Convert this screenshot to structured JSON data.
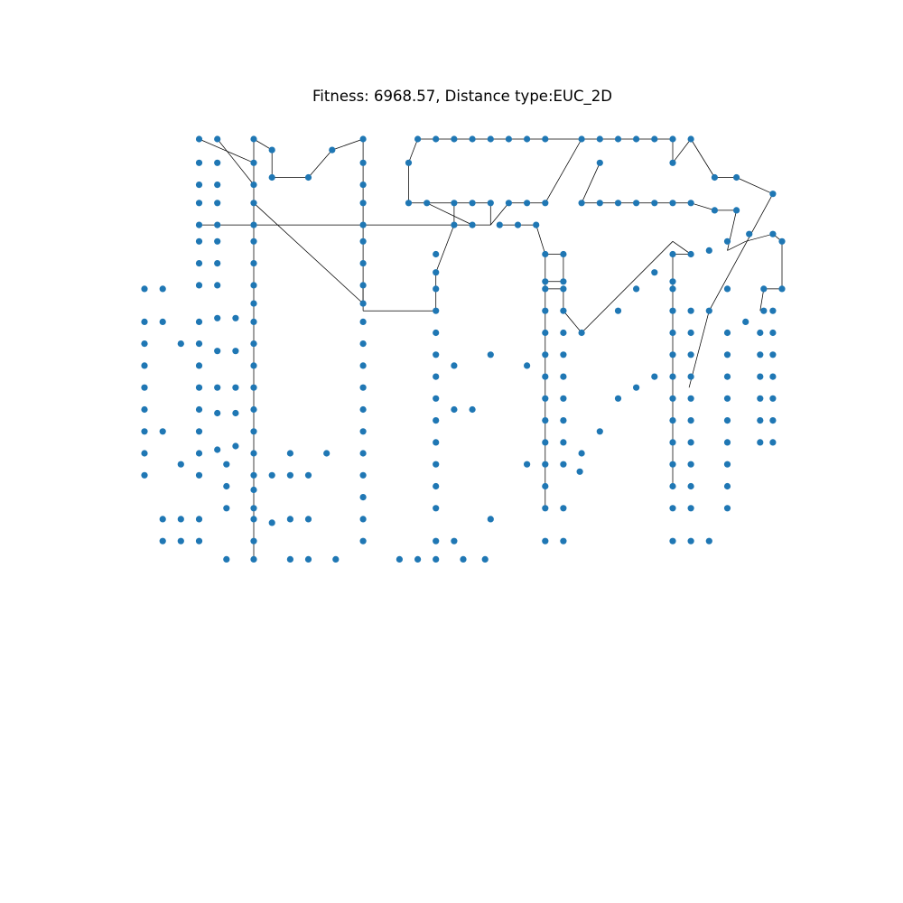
{
  "chart_data": {
    "type": "scatter",
    "title": "Fitness: 6968.57, Distance type:EUC_2D",
    "fitness": 6968.57,
    "distance_type": "EUC_2D",
    "xlabel": "",
    "ylabel": "",
    "axes_visible": false,
    "grid": false,
    "legend": "none",
    "xlim": [
      -0.5,
      35.5
    ],
    "ylim": [
      -0.5,
      34.5
    ],
    "marker_color": "#1f77b4",
    "edge_color": "#000000",
    "points": [
      [
        3,
        34
      ],
      [
        4,
        34
      ],
      [
        6,
        34
      ],
      [
        12,
        34
      ],
      [
        15,
        34
      ],
      [
        16,
        34
      ],
      [
        17,
        34
      ],
      [
        18,
        34
      ],
      [
        19,
        34
      ],
      [
        20,
        34
      ],
      [
        21,
        34
      ],
      [
        22,
        34
      ],
      [
        24,
        34
      ],
      [
        25,
        34
      ],
      [
        26,
        34
      ],
      [
        27,
        34
      ],
      [
        28,
        34
      ],
      [
        29,
        34
      ],
      [
        30,
        34
      ],
      [
        7,
        33.4
      ],
      [
        10.3,
        33.4
      ],
      [
        3,
        32.7
      ],
      [
        4,
        32.7
      ],
      [
        6,
        32.7
      ],
      [
        12,
        32.7
      ],
      [
        14.5,
        32.7
      ],
      [
        25,
        32.7
      ],
      [
        29,
        32.7
      ],
      [
        7,
        31.9
      ],
      [
        9,
        31.9
      ],
      [
        31.3,
        31.9
      ],
      [
        32.5,
        31.9
      ],
      [
        3,
        31.5
      ],
      [
        4,
        31.5
      ],
      [
        6,
        31.5
      ],
      [
        12,
        31.5
      ],
      [
        34.5,
        31
      ],
      [
        3,
        30.5
      ],
      [
        4,
        30.5
      ],
      [
        6,
        30.5
      ],
      [
        12,
        30.5
      ],
      [
        14.5,
        30.5
      ],
      [
        15.5,
        30.5
      ],
      [
        17,
        30.5
      ],
      [
        18,
        30.5
      ],
      [
        19,
        30.5
      ],
      [
        20,
        30.5
      ],
      [
        21,
        30.5
      ],
      [
        22,
        30.5
      ],
      [
        24,
        30.5
      ],
      [
        25,
        30.5
      ],
      [
        26,
        30.5
      ],
      [
        27,
        30.5
      ],
      [
        28,
        30.5
      ],
      [
        29,
        30.5
      ],
      [
        30,
        30.5
      ],
      [
        31.3,
        30.1
      ],
      [
        32.5,
        30.1
      ],
      [
        3,
        29.3
      ],
      [
        4,
        29.3
      ],
      [
        6,
        29.3
      ],
      [
        12,
        29.3
      ],
      [
        17,
        29.3
      ],
      [
        18,
        29.3
      ],
      [
        19.5,
        29.3
      ],
      [
        20.5,
        29.3
      ],
      [
        21.5,
        29.3
      ],
      [
        33.2,
        28.8
      ],
      [
        34.5,
        28.8
      ],
      [
        35,
        28.4
      ],
      [
        3,
        28.4
      ],
      [
        4,
        28.4
      ],
      [
        6,
        28.4
      ],
      [
        12,
        28.4
      ],
      [
        32,
        28.4
      ],
      [
        31,
        27.9
      ],
      [
        16,
        27.7
      ],
      [
        22,
        27.7
      ],
      [
        23,
        27.7
      ],
      [
        29,
        27.7
      ],
      [
        30,
        27.7
      ],
      [
        3,
        27.2
      ],
      [
        4,
        27.2
      ],
      [
        6,
        27.2
      ],
      [
        12,
        27.2
      ],
      [
        16,
        26.7
      ],
      [
        28,
        26.7
      ],
      [
        22,
        26.2
      ],
      [
        23,
        26.2
      ],
      [
        29,
        26.2
      ],
      [
        3,
        26
      ],
      [
        4,
        26
      ],
      [
        6,
        26
      ],
      [
        12,
        26
      ],
      [
        0,
        25.8
      ],
      [
        1,
        25.8
      ],
      [
        16,
        25.8
      ],
      [
        22,
        25.8
      ],
      [
        23,
        25.8
      ],
      [
        27,
        25.8
      ],
      [
        29,
        25.8
      ],
      [
        32,
        25.8
      ],
      [
        34,
        25.8
      ],
      [
        35,
        25.8
      ],
      [
        6,
        25
      ],
      [
        12,
        25
      ],
      [
        16,
        24.6
      ],
      [
        22,
        24.6
      ],
      [
        23,
        24.6
      ],
      [
        26,
        24.6
      ],
      [
        29,
        24.6
      ],
      [
        30,
        24.6
      ],
      [
        31,
        24.6
      ],
      [
        34,
        24.6
      ],
      [
        34.5,
        24.6
      ],
      [
        4,
        24.2
      ],
      [
        5,
        24.2
      ],
      [
        0,
        24
      ],
      [
        1,
        24
      ],
      [
        3,
        24
      ],
      [
        6,
        24
      ],
      [
        12,
        24
      ],
      [
        33,
        24
      ],
      [
        16,
        23.4
      ],
      [
        22,
        23.4
      ],
      [
        23,
        23.4
      ],
      [
        24,
        23.4
      ],
      [
        29,
        23.4
      ],
      [
        30,
        23.4
      ],
      [
        32,
        23.4
      ],
      [
        33.8,
        23.4
      ],
      [
        34.5,
        23.4
      ],
      [
        0,
        22.8
      ],
      [
        2,
        22.8
      ],
      [
        3,
        22.8
      ],
      [
        6,
        22.8
      ],
      [
        12,
        22.8
      ],
      [
        19,
        22.2
      ],
      [
        16,
        22.2
      ],
      [
        22,
        22.2
      ],
      [
        23,
        22.2
      ],
      [
        29,
        22.2
      ],
      [
        30,
        22.2
      ],
      [
        32,
        22.2
      ],
      [
        33.8,
        22.2
      ],
      [
        34.5,
        22.2
      ],
      [
        4,
        22.4
      ],
      [
        5,
        22.4
      ],
      [
        0,
        21.6
      ],
      [
        3,
        21.6
      ],
      [
        6,
        21.6
      ],
      [
        12,
        21.6
      ],
      [
        17,
        21.6
      ],
      [
        21,
        21.6
      ],
      [
        22,
        21
      ],
      [
        23,
        21
      ],
      [
        16,
        21
      ],
      [
        28,
        21
      ],
      [
        29,
        21
      ],
      [
        30,
        21
      ],
      [
        32,
        21
      ],
      [
        33.8,
        21
      ],
      [
        34.5,
        21
      ],
      [
        3,
        20.4
      ],
      [
        4,
        20.4
      ],
      [
        5,
        20.4
      ],
      [
        6,
        20.4
      ],
      [
        0,
        20.4
      ],
      [
        12,
        20.4
      ],
      [
        27,
        20.4
      ],
      [
        16,
        19.8
      ],
      [
        22,
        19.8
      ],
      [
        23,
        19.8
      ],
      [
        26,
        19.8
      ],
      [
        29,
        19.8
      ],
      [
        30,
        19.8
      ],
      [
        32,
        19.8
      ],
      [
        33.8,
        19.8
      ],
      [
        34.5,
        19.8
      ],
      [
        0,
        19.2
      ],
      [
        3,
        19.2
      ],
      [
        4,
        19
      ],
      [
        5,
        19
      ],
      [
        6,
        19.2
      ],
      [
        12,
        19.2
      ],
      [
        17,
        19.2
      ],
      [
        18,
        19.2
      ],
      [
        16,
        18.6
      ],
      [
        22,
        18.6
      ],
      [
        23,
        18.6
      ],
      [
        29,
        18.6
      ],
      [
        30,
        18.6
      ],
      [
        32,
        18.6
      ],
      [
        33.8,
        18.6
      ],
      [
        34.5,
        18.6
      ],
      [
        0,
        18
      ],
      [
        1,
        18
      ],
      [
        3,
        18
      ],
      [
        6,
        18
      ],
      [
        12,
        18
      ],
      [
        25,
        18
      ],
      [
        16,
        17.4
      ],
      [
        22,
        17.4
      ],
      [
        23,
        17.4
      ],
      [
        29,
        17.4
      ],
      [
        30,
        17.4
      ],
      [
        32,
        17.4
      ],
      [
        33.8,
        17.4
      ],
      [
        34.5,
        17.4
      ],
      [
        0,
        16.8
      ],
      [
        3,
        16.8
      ],
      [
        4,
        17
      ],
      [
        5,
        17.2
      ],
      [
        6,
        16.8
      ],
      [
        8,
        16.8
      ],
      [
        10,
        16.8
      ],
      [
        12,
        16.8
      ],
      [
        24,
        16.8
      ],
      [
        2,
        16.2
      ],
      [
        4.5,
        16.2
      ],
      [
        16,
        16.2
      ],
      [
        21,
        16.2
      ],
      [
        22,
        16.2
      ],
      [
        23,
        16.2
      ],
      [
        29,
        16.2
      ],
      [
        30,
        16.2
      ],
      [
        32,
        16.2
      ],
      [
        0,
        15.6
      ],
      [
        3,
        15.6
      ],
      [
        6,
        15.6
      ],
      [
        7,
        15.6
      ],
      [
        8,
        15.6
      ],
      [
        9,
        15.6
      ],
      [
        12,
        15.6
      ],
      [
        23.9,
        15.8
      ],
      [
        4.5,
        15
      ],
      [
        6,
        14.8
      ],
      [
        16,
        15
      ],
      [
        22,
        15
      ],
      [
        29,
        15
      ],
      [
        30,
        15
      ],
      [
        32,
        15
      ],
      [
        12,
        14.4
      ],
      [
        4.5,
        13.8
      ],
      [
        6,
        13.8
      ],
      [
        16,
        13.8
      ],
      [
        22,
        13.8
      ],
      [
        23,
        13.8
      ],
      [
        29,
        13.8
      ],
      [
        30,
        13.8
      ],
      [
        32,
        13.8
      ],
      [
        1,
        13.2
      ],
      [
        2,
        13.2
      ],
      [
        3,
        13.2
      ],
      [
        6,
        13.2
      ],
      [
        7,
        13
      ],
      [
        8,
        13.2
      ],
      [
        9,
        13.2
      ],
      [
        12,
        13.2
      ],
      [
        19,
        13.2
      ],
      [
        1,
        12
      ],
      [
        2,
        12
      ],
      [
        3,
        12
      ],
      [
        6,
        12
      ],
      [
        12,
        12
      ],
      [
        16,
        12
      ],
      [
        17,
        12
      ],
      [
        22,
        12
      ],
      [
        23,
        12
      ],
      [
        29,
        12
      ],
      [
        30,
        12
      ],
      [
        31,
        12
      ],
      [
        4.5,
        11
      ],
      [
        6,
        11
      ],
      [
        8,
        11
      ],
      [
        9,
        11
      ],
      [
        10.5,
        11
      ],
      [
        14,
        11
      ],
      [
        15,
        11
      ],
      [
        16,
        11
      ],
      [
        17.5,
        11
      ],
      [
        18.7,
        11
      ]
    ],
    "tour_edges": [
      [
        [
          3,
          34
        ],
        [
          6,
          32.7
        ]
      ],
      [
        [
          4,
          34
        ],
        [
          6,
          31.5
        ]
      ],
      [
        [
          6,
          34
        ],
        [
          7,
          33.4
        ]
      ],
      [
        [
          7,
          33.4
        ],
        [
          7,
          31.9
        ]
      ],
      [
        [
          7,
          31.9
        ],
        [
          9,
          31.9
        ]
      ],
      [
        [
          9,
          31.9
        ],
        [
          10.3,
          33.4
        ]
      ],
      [
        [
          10.3,
          33.4
        ],
        [
          12,
          34
        ]
      ],
      [
        [
          12,
          34
        ],
        [
          12,
          25
        ]
      ],
      [
        [
          12,
          25
        ],
        [
          6,
          30.5
        ]
      ],
      [
        [
          6,
          34
        ],
        [
          6,
          11
        ]
      ],
      [
        [
          15,
          34
        ],
        [
          14.5,
          32.7
        ]
      ],
      [
        [
          14.5,
          32.7
        ],
        [
          14.5,
          30.5
        ]
      ],
      [
        [
          14.5,
          30.5
        ],
        [
          17,
          30.5
        ]
      ],
      [
        [
          15,
          34
        ],
        [
          22,
          34
        ]
      ],
      [
        [
          22,
          34
        ],
        [
          24,
          34
        ]
      ],
      [
        [
          24,
          34
        ],
        [
          22,
          30.5
        ]
      ],
      [
        [
          24,
          34
        ],
        [
          25,
          34
        ]
      ],
      [
        [
          25,
          34
        ],
        [
          29,
          34
        ]
      ],
      [
        [
          29,
          34
        ],
        [
          29,
          32.7
        ]
      ],
      [
        [
          29,
          32.7
        ],
        [
          30,
          34
        ]
      ],
      [
        [
          30,
          34
        ],
        [
          31.3,
          31.9
        ]
      ],
      [
        [
          31.3,
          31.9
        ],
        [
          32.5,
          31.9
        ]
      ],
      [
        [
          32.5,
          31.9
        ],
        [
          34.5,
          31
        ]
      ],
      [
        [
          34.5,
          31
        ],
        [
          31,
          24.6
        ]
      ],
      [
        [
          31,
          24.6
        ],
        [
          29.9,
          20.4
        ]
      ],
      [
        [
          24,
          30.5
        ],
        [
          25,
          32.7
        ]
      ],
      [
        [
          24,
          30.5
        ],
        [
          30,
          30.5
        ]
      ],
      [
        [
          30,
          30.5
        ],
        [
          31.3,
          30.1
        ]
      ],
      [
        [
          31.3,
          30.1
        ],
        [
          32.5,
          30.1
        ]
      ],
      [
        [
          32.5,
          30.1
        ],
        [
          32,
          27.9
        ]
      ],
      [
        [
          32,
          27.9
        ],
        [
          33,
          28.4
        ]
      ],
      [
        [
          33,
          28.4
        ],
        [
          34.5,
          28.8
        ]
      ],
      [
        [
          34.5,
          28.8
        ],
        [
          35,
          28.4
        ]
      ],
      [
        [
          35,
          28.4
        ],
        [
          35,
          25.8
        ]
      ],
      [
        [
          35,
          25.8
        ],
        [
          34,
          25.8
        ]
      ],
      [
        [
          34,
          25.8
        ],
        [
          33.8,
          24.6
        ]
      ],
      [
        [
          17,
          30.5
        ],
        [
          17,
          29.3
        ]
      ],
      [
        [
          17,
          30.5
        ],
        [
          18,
          30.5
        ]
      ],
      [
        [
          18,
          30.5
        ],
        [
          19,
          30.5
        ]
      ],
      [
        [
          19,
          30.5
        ],
        [
          19,
          29.3
        ]
      ],
      [
        [
          19,
          29.3
        ],
        [
          20,
          30.5
        ]
      ],
      [
        [
          20,
          30.5
        ],
        [
          22,
          30.5
        ]
      ],
      [
        [
          15.5,
          30.5
        ],
        [
          18,
          29.3
        ]
      ],
      [
        [
          12,
          29.3
        ],
        [
          19,
          29.3
        ]
      ],
      [
        [
          3,
          29.3
        ],
        [
          12,
          29.3
        ]
      ],
      [
        [
          19.5,
          29.3
        ],
        [
          20.5,
          29.3
        ]
      ],
      [
        [
          20.5,
          29.3
        ],
        [
          21.5,
          29.3
        ]
      ],
      [
        [
          21.5,
          29.3
        ],
        [
          22,
          27.7
        ]
      ],
      [
        [
          12,
          26
        ],
        [
          12,
          24.6
        ]
      ],
      [
        [
          12,
          24.6
        ],
        [
          16,
          24.6
        ]
      ],
      [
        [
          16,
          24.6
        ],
        [
          16,
          26.7
        ]
      ],
      [
        [
          16,
          26.7
        ],
        [
          17,
          29.3
        ]
      ],
      [
        [
          22,
          27.7
        ],
        [
          23,
          27.7
        ]
      ],
      [
        [
          22,
          27.7
        ],
        [
          22,
          13.8
        ]
      ],
      [
        [
          23,
          27.7
        ],
        [
          23,
          26.2
        ]
      ],
      [
        [
          23,
          26.2
        ],
        [
          22,
          26.2
        ]
      ],
      [
        [
          22,
          25.8
        ],
        [
          23,
          25.8
        ]
      ],
      [
        [
          23,
          25.8
        ],
        [
          23,
          24.6
        ]
      ],
      [
        [
          23,
          24.6
        ],
        [
          24,
          23.4
        ]
      ],
      [
        [
          24,
          23.4
        ],
        [
          29,
          28.4
        ]
      ],
      [
        [
          29,
          28.4
        ],
        [
          30,
          27.7
        ]
      ],
      [
        [
          29,
          27.7
        ],
        [
          30,
          27.7
        ]
      ],
      [
        [
          29,
          27.7
        ],
        [
          29,
          15
        ]
      ]
    ]
  }
}
